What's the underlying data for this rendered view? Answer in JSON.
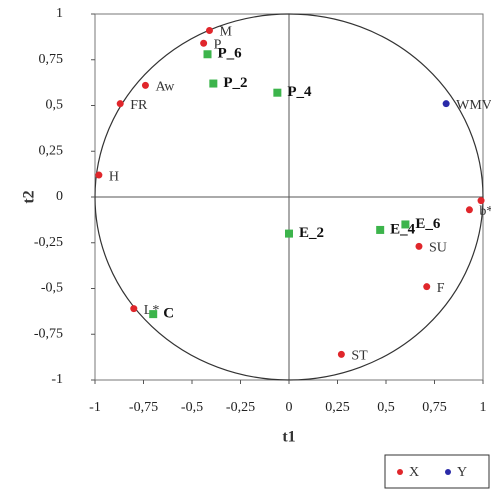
{
  "chart_data": {
    "type": "scatter",
    "x_label": "t1",
    "y_label": "t2",
    "xlim": [
      -1,
      1
    ],
    "ylim": [
      -1,
      1
    ],
    "xticks": [
      -1,
      {
        "value": -0.75,
        "label": "-0,75"
      },
      {
        "value": -0.5,
        "label": "-0,5"
      },
      {
        "value": -0.25,
        "label": "-0,25"
      },
      0,
      {
        "value": 0.25,
        "label": "0,25"
      },
      {
        "value": 0.5,
        "label": "0,5"
      },
      {
        "value": 0.75,
        "label": "0,75"
      },
      1
    ],
    "yticks": [
      -1,
      {
        "value": -0.75,
        "label": "-0,75"
      },
      {
        "value": -0.5,
        "label": "-0,5"
      },
      {
        "value": -0.25,
        "label": "-0,25"
      },
      0,
      {
        "value": 0.25,
        "label": "0,25"
      },
      {
        "value": 0.5,
        "label": "0,5"
      },
      {
        "value": 0.75,
        "label": "0,75"
      },
      1
    ],
    "grid": false,
    "legend": "bottom-right",
    "series": [
      {
        "name": "X",
        "color": "#e0262b",
        "marker": "circle",
        "labels": [
          "M",
          "P",
          "Aw",
          "FR",
          "H",
          "L*",
          "ST",
          "F",
          "SU",
          "b*",
          "a*"
        ],
        "x": [
          -0.41,
          -0.44,
          -0.74,
          -0.87,
          -0.98,
          -0.8,
          0.27,
          0.71,
          0.67,
          0.93,
          0.99
        ],
        "values": [
          0.91,
          0.84,
          0.61,
          0.51,
          0.12,
          -0.61,
          -0.86,
          -0.49,
          -0.27,
          -0.07,
          -0.02
        ]
      },
      {
        "name": "Y",
        "color": "#2a2aa8",
        "marker": "circle",
        "labels": [
          "WMV"
        ],
        "x": [
          0.81
        ],
        "values": [
          0.51
        ]
      },
      {
        "color": "#3cb44b",
        "marker": "square",
        "labels": [
          "P_6",
          "P_2",
          "P_4",
          "E_2",
          "E_4",
          "E_6",
          "C"
        ],
        "x": [
          -0.42,
          -0.39,
          -0.06,
          0.0,
          0.47,
          0.6,
          -0.7
        ],
        "values": [
          0.78,
          0.62,
          0.57,
          -0.2,
          -0.18,
          -0.15,
          -0.64
        ]
      }
    ]
  }
}
